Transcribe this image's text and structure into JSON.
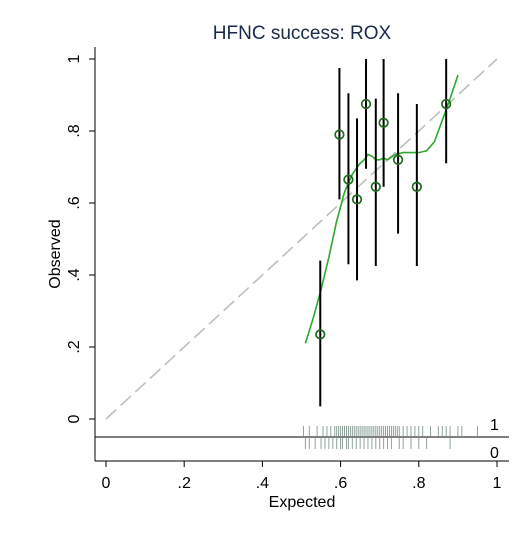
{
  "chart_data": {
    "type": "scatter",
    "title": "HFNC success: ROX",
    "xlabel": "Expected",
    "ylabel": "Observed",
    "xlim": [
      0,
      1
    ],
    "ylim": [
      0,
      1
    ],
    "xticks": [
      "0",
      ".2",
      ".4",
      ".6",
      ".8",
      "1"
    ],
    "yticks": [
      "0",
      ".2",
      ".4",
      ".6",
      ".8",
      "1"
    ],
    "grid": false,
    "reference_line": [
      [
        0,
        0
      ],
      [
        1,
        1
      ]
    ],
    "points": [
      {
        "x": 0.548,
        "y": 0.235,
        "ci": [
          0.035,
          0.44
        ]
      },
      {
        "x": 0.597,
        "y": 0.79,
        "ci": [
          0.61,
          0.975
        ]
      },
      {
        "x": 0.62,
        "y": 0.665,
        "ci": [
          0.43,
          0.905
        ]
      },
      {
        "x": 0.642,
        "y": 0.61,
        "ci": [
          0.385,
          0.835
        ]
      },
      {
        "x": 0.665,
        "y": 0.875,
        "ci": [
          0.695,
          1.0
        ]
      },
      {
        "x": 0.69,
        "y": 0.645,
        "ci": [
          0.425,
          0.89
        ]
      },
      {
        "x": 0.71,
        "y": 0.823,
        "ci": [
          0.645,
          1.0
        ]
      },
      {
        "x": 0.747,
        "y": 0.72,
        "ci": [
          0.515,
          0.905
        ]
      },
      {
        "x": 0.795,
        "y": 0.645,
        "ci": [
          0.425,
          0.875
        ]
      },
      {
        "x": 0.87,
        "y": 0.875,
        "ci": [
          0.71,
          1.0
        ]
      }
    ],
    "lowess": {
      "x": [
        0.51,
        0.53,
        0.55,
        0.57,
        0.59,
        0.61,
        0.63,
        0.65,
        0.66,
        0.67,
        0.68,
        0.69,
        0.7,
        0.71,
        0.72,
        0.74,
        0.76,
        0.78,
        0.8,
        0.82,
        0.84,
        0.86,
        0.88,
        0.9
      ],
      "y": [
        0.21,
        0.28,
        0.36,
        0.45,
        0.55,
        0.63,
        0.68,
        0.71,
        0.72,
        0.735,
        0.73,
        0.72,
        0.72,
        0.725,
        0.72,
        0.735,
        0.74,
        0.74,
        0.74,
        0.745,
        0.77,
        0.83,
        0.89,
        0.955
      ]
    },
    "rug": {
      "labels": [
        "1",
        "0"
      ],
      "success_x": [
        0.505,
        0.52,
        0.54,
        0.555,
        0.565,
        0.575,
        0.585,
        0.59,
        0.595,
        0.6,
        0.605,
        0.61,
        0.615,
        0.62,
        0.625,
        0.63,
        0.635,
        0.64,
        0.645,
        0.65,
        0.655,
        0.66,
        0.665,
        0.67,
        0.675,
        0.68,
        0.685,
        0.69,
        0.695,
        0.7,
        0.705,
        0.71,
        0.715,
        0.72,
        0.725,
        0.73,
        0.735,
        0.74,
        0.745,
        0.75,
        0.76,
        0.77,
        0.78,
        0.79,
        0.8,
        0.81,
        0.83,
        0.85,
        0.86,
        0.87,
        0.88,
        0.9,
        0.91,
        0.95
      ],
      "failure_x": [
        0.51,
        0.52,
        0.535,
        0.55,
        0.56,
        0.57,
        0.58,
        0.59,
        0.6,
        0.605,
        0.615,
        0.62,
        0.63,
        0.64,
        0.65,
        0.66,
        0.67,
        0.68,
        0.69,
        0.7,
        0.71,
        0.72,
        0.73,
        0.75,
        0.76,
        0.78,
        0.8,
        0.82,
        0.88
      ]
    }
  }
}
